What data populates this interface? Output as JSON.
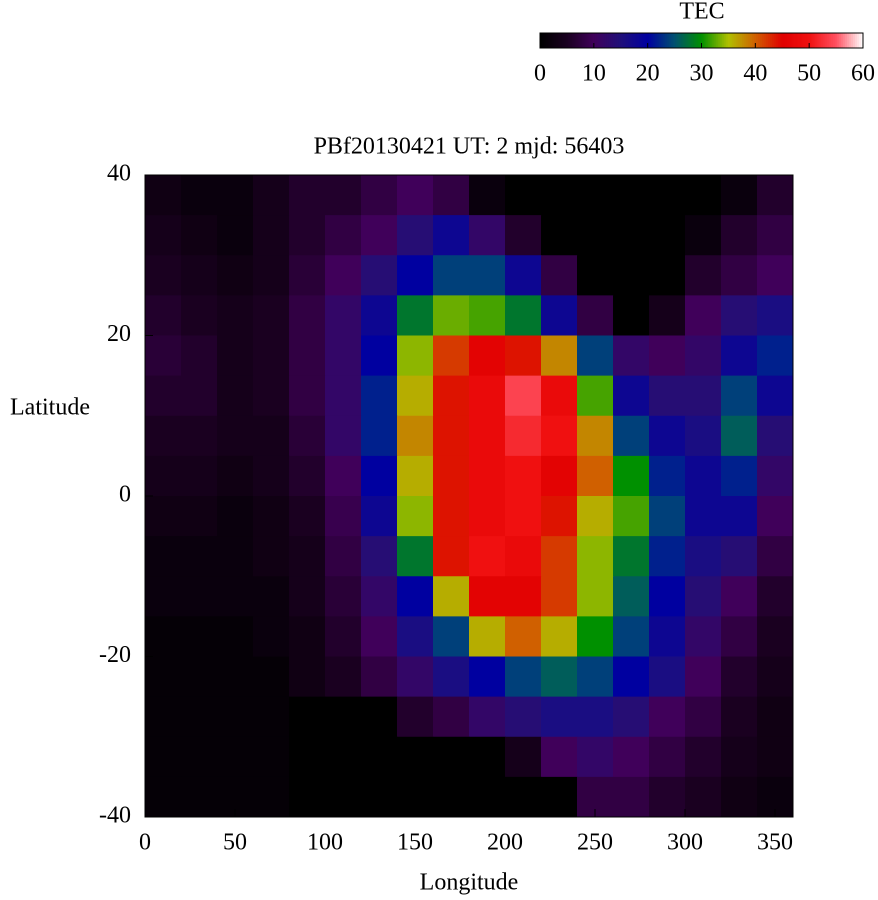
{
  "chart_data": {
    "type": "heatmap",
    "title": "PBf20130421  UT: 2  mjd: 56403",
    "xlabel": "Longitude",
    "ylabel": "Latitude",
    "x": [
      10,
      30,
      50,
      70,
      90,
      110,
      130,
      150,
      170,
      190,
      210,
      230,
      250,
      270,
      290,
      310,
      330,
      350
    ],
    "y": [
      37.5,
      32.5,
      27.5,
      22.5,
      17.5,
      12.5,
      7.5,
      2.5,
      -2.5,
      -7.5,
      -12.5,
      -17.5,
      -22.5,
      -27.5,
      -32.5,
      -37.5
    ],
    "z": [
      [
        3,
        2,
        2,
        4,
        6,
        6,
        8,
        10,
        8,
        2,
        0,
        0,
        0,
        0,
        0,
        0,
        2,
        6
      ],
      [
        4,
        3,
        2,
        4,
        6,
        8,
        10,
        14,
        18,
        12,
        6,
        0,
        0,
        0,
        0,
        2,
        6,
        8
      ],
      [
        5,
        4,
        3,
        4,
        7,
        10,
        14,
        20,
        24,
        24,
        18,
        8,
        0,
        0,
        0,
        6,
        8,
        10
      ],
      [
        6,
        5,
        4,
        5,
        8,
        12,
        18,
        28,
        33,
        32,
        28,
        18,
        8,
        0,
        4,
        10,
        14,
        16
      ],
      [
        7,
        6,
        4,
        5,
        8,
        12,
        20,
        34,
        42,
        46,
        44,
        38,
        24,
        12,
        10,
        12,
        18,
        22
      ],
      [
        6,
        6,
        4,
        5,
        8,
        12,
        22,
        36,
        44,
        48,
        54,
        48,
        32,
        18,
        14,
        14,
        24,
        18
      ],
      [
        5,
        5,
        4,
        4,
        7,
        12,
        22,
        38,
        44,
        48,
        52,
        50,
        38,
        24,
        18,
        16,
        26,
        14
      ],
      [
        4,
        4,
        3,
        4,
        6,
        10,
        20,
        36,
        44,
        48,
        50,
        46,
        40,
        30,
        22,
        18,
        22,
        12
      ],
      [
        3,
        3,
        2,
        3,
        5,
        9,
        18,
        34,
        44,
        48,
        50,
        44,
        36,
        32,
        24,
        18,
        18,
        10
      ],
      [
        2,
        2,
        2,
        3,
        4,
        8,
        14,
        28,
        44,
        50,
        48,
        42,
        34,
        28,
        22,
        16,
        14,
        8
      ],
      [
        2,
        2,
        2,
        2,
        4,
        7,
        12,
        20,
        36,
        46,
        46,
        42,
        34,
        26,
        20,
        14,
        10,
        6
      ],
      [
        1,
        1,
        1,
        2,
        3,
        6,
        10,
        16,
        24,
        36,
        40,
        36,
        30,
        24,
        18,
        12,
        8,
        5
      ],
      [
        1,
        1,
        1,
        1,
        3,
        5,
        8,
        12,
        16,
        20,
        24,
        26,
        24,
        20,
        16,
        10,
        6,
        4
      ],
      [
        1,
        1,
        1,
        1,
        0,
        0,
        0,
        6,
        8,
        12,
        14,
        16,
        16,
        14,
        10,
        8,
        5,
        3
      ],
      [
        1,
        1,
        1,
        1,
        0,
        0,
        0,
        0,
        0,
        0,
        4,
        10,
        12,
        10,
        8,
        6,
        4,
        3
      ],
      [
        1,
        1,
        1,
        1,
        0,
        0,
        0,
        0,
        0,
        0,
        0,
        0,
        8,
        8,
        6,
        5,
        3,
        2
      ]
    ],
    "xlim": [
      0,
      360
    ],
    "ylim": [
      -40,
      40
    ],
    "xticks": [
      0,
      50,
      100,
      150,
      200,
      250,
      300,
      350
    ],
    "yticks": [
      -40,
      -20,
      0,
      20,
      40
    ],
    "colorbar": {
      "label": "TEC",
      "lim": [
        0,
        60
      ],
      "ticks": [
        0,
        10,
        20,
        30,
        40,
        50,
        60
      ],
      "colors": [
        "#000000",
        "#1a0020",
        "#40005a",
        "#20107a",
        "#0000a0",
        "#005070",
        "#009000",
        "#b0c000",
        "#d06000",
        "#e00000",
        "#f01010",
        "#ff5060",
        "#ffffff"
      ]
    }
  }
}
